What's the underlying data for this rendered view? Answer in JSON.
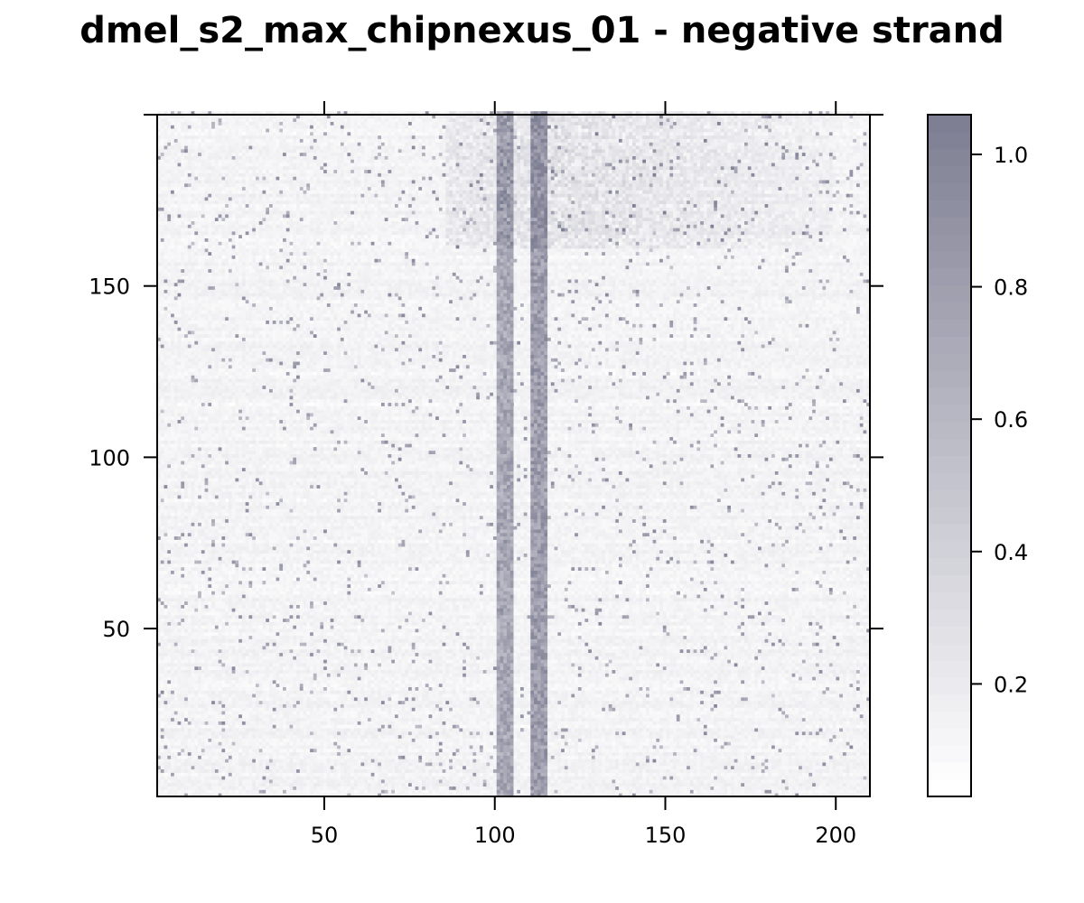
{
  "chart_data": {
    "type": "heatmap",
    "title": "dmel_s2_max_chipnexus_01 - negative strand",
    "xlabel": "",
    "ylabel": "",
    "xlim": [
      1,
      210
    ],
    "ylim": [
      1,
      200
    ],
    "x_ticks": [
      "50",
      "100",
      "150",
      "200"
    ],
    "y_ticks": [
      "50",
      "100",
      "150"
    ],
    "n_columns": 210,
    "n_rows": 200,
    "colorbar": {
      "range": [
        0.03,
        1.06
      ],
      "ticks": [
        "0.2",
        "0.4",
        "0.6",
        "0.8",
        "1.0"
      ],
      "low_color": "#ffffff",
      "high_color": "#7f7f94"
    },
    "pattern": {
      "description_hidden": true,
      "band_1": {
        "x_center": 103,
        "width": 4,
        "level": 0.85
      },
      "band_2": {
        "x_center": 113,
        "width": 5,
        "level": 0.95
      },
      "background_level": 0.08,
      "upper_region_boost_from_row": 160
    }
  }
}
